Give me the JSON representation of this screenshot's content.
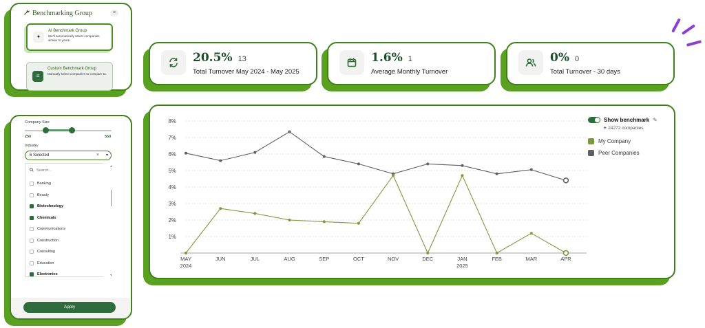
{
  "benchmark_group": {
    "title": "Benchmarking Group",
    "close": "×",
    "ai": {
      "title": "AI Benchmark Group",
      "desc": "We'll automatically select companies similar to yours."
    },
    "custom": {
      "title": "Custom Benchmark Group",
      "desc": "Manually select companies to compare to."
    }
  },
  "stats": [
    {
      "value": "20.5%",
      "count": "13",
      "label": "Total Turnover May 2024 - May 2025",
      "icon": "refresh-icon"
    },
    {
      "value": "1.6%",
      "count": "1",
      "label": "Average Monthly Turnover",
      "icon": "calendar-icon"
    },
    {
      "value": "0%",
      "count": "0",
      "label": "Total Turnover - 30 days",
      "icon": "users-icon"
    }
  ],
  "filters": {
    "company_size_label": "Company Size",
    "size_min": "250",
    "size_max": "550",
    "industry_label": "Industry",
    "industry_value": "6 Selected",
    "search_placeholder": "Search...",
    "industries": [
      {
        "name": "Banking",
        "checked": false
      },
      {
        "name": "Beauty",
        "checked": false
      },
      {
        "name": "Biotechnology",
        "checked": true
      },
      {
        "name": "Chemicals",
        "checked": true
      },
      {
        "name": "Communications",
        "checked": false
      },
      {
        "name": "Construction",
        "checked": false
      },
      {
        "name": "Consulting",
        "checked": false
      },
      {
        "name": "Education",
        "checked": false
      },
      {
        "name": "Electronics",
        "checked": true
      }
    ],
    "apply_label": "Apply"
  },
  "legend": {
    "toggle_label": "Show benchmark",
    "companies": "24272 companies",
    "series": [
      {
        "name": "My Company",
        "color": "#7a9a3c"
      },
      {
        "name": "Peer Companies",
        "color": "#5f5f5f"
      }
    ]
  },
  "chart_data": {
    "type": "line",
    "categories": [
      "MAY",
      "JUN",
      "JUL",
      "AUG",
      "SEP",
      "OCT",
      "NOV",
      "DEC",
      "JAN",
      "FEB",
      "MAR",
      "APR"
    ],
    "year_labels": [
      "2024",
      "",
      "",
      "",
      "",
      "",
      "",
      "",
      "2025",
      "",
      "",
      ""
    ],
    "y_ticks": [
      "1%",
      "2%",
      "3%",
      "4%",
      "5%",
      "6%",
      "7%",
      "8%"
    ],
    "ylim": [
      0,
      8
    ],
    "grid": true,
    "legend_position": "top-right",
    "series": [
      {
        "name": "My Company",
        "color": "#7a9a3c",
        "values": [
          0.0,
          2.7,
          2.4,
          2.0,
          1.9,
          1.8,
          4.7,
          0.0,
          4.7,
          0.0,
          1.2,
          0.0
        ]
      },
      {
        "name": "Peer Companies",
        "color": "#5f5f5f",
        "values": [
          6.05,
          5.6,
          6.1,
          7.35,
          5.85,
          5.4,
          4.8,
          5.4,
          5.3,
          4.8,
          5.05,
          4.4
        ]
      }
    ]
  }
}
